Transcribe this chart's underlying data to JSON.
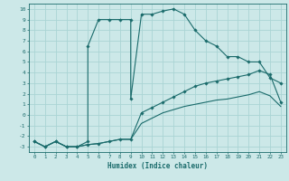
{
  "xlabel": "Humidex (Indice chaleur)",
  "bg_color": "#cce8e8",
  "line_color": "#1a6b6b",
  "grid_color": "#aad4d4",
  "xlim": [
    -0.5,
    23.5
  ],
  "ylim": [
    -3.5,
    10.5
  ],
  "xticks": [
    0,
    1,
    2,
    3,
    4,
    5,
    6,
    7,
    8,
    9,
    10,
    11,
    12,
    13,
    14,
    15,
    16,
    17,
    18,
    19,
    20,
    21,
    22,
    23
  ],
  "yticks": [
    -3,
    -2,
    -1,
    0,
    1,
    2,
    3,
    4,
    5,
    6,
    7,
    8,
    9,
    10
  ],
  "line1_x": [
    0,
    1,
    2,
    3,
    4,
    5,
    5,
    6,
    7,
    8,
    9,
    9,
    10,
    11,
    12,
    13,
    14,
    15,
    16,
    17,
    18,
    19,
    20,
    21,
    22,
    23
  ],
  "line1_y": [
    -2.5,
    -3,
    -2.5,
    -3,
    -3,
    -2.5,
    6.5,
    9,
    9,
    9,
    9,
    1.5,
    9.5,
    9.5,
    9.8,
    10,
    9.5,
    8,
    7,
    6.5,
    5.5,
    5.5,
    5,
    5,
    3.5,
    3
  ],
  "line2_x": [
    0,
    1,
    2,
    3,
    4,
    5,
    6,
    7,
    8,
    9,
    10,
    11,
    12,
    13,
    14,
    15,
    16,
    17,
    18,
    19,
    20,
    21,
    22,
    23
  ],
  "line2_y": [
    -2.5,
    -3,
    -2.5,
    -3,
    -3,
    -2.8,
    -2.7,
    -2.5,
    -2.3,
    -2.3,
    0.2,
    0.7,
    1.2,
    1.7,
    2.2,
    2.7,
    3.0,
    3.2,
    3.4,
    3.6,
    3.8,
    4.2,
    3.8,
    1.2
  ],
  "line3_x": [
    0,
    1,
    2,
    3,
    4,
    5,
    6,
    7,
    8,
    9,
    10,
    11,
    12,
    13,
    14,
    15,
    16,
    17,
    18,
    19,
    20,
    21,
    22,
    23
  ],
  "line3_y": [
    -2.5,
    -3,
    -2.5,
    -3,
    -3,
    -2.8,
    -2.7,
    -2.5,
    -2.3,
    -2.3,
    -0.8,
    -0.3,
    0.2,
    0.5,
    0.8,
    1.0,
    1.2,
    1.4,
    1.5,
    1.7,
    1.9,
    2.2,
    1.8,
    0.8
  ]
}
